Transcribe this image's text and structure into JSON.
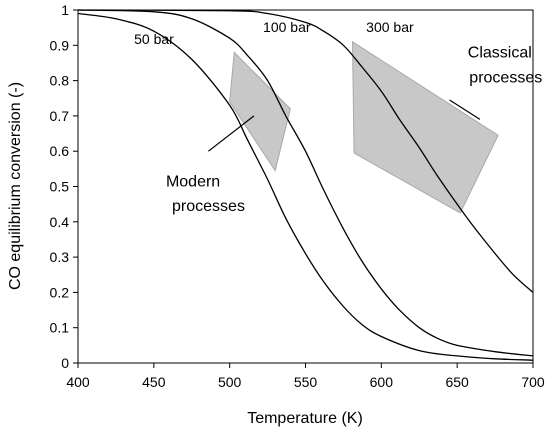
{
  "chart_data": {
    "type": "line",
    "title": "",
    "xlabel": "Temperature (K)",
    "ylabel": "CO equilibrium conversion (-)",
    "xlim": [
      400,
      700
    ],
    "ylim": [
      0,
      1
    ],
    "xticks": [
      "400",
      "450",
      "500",
      "550",
      "600",
      "650",
      "700"
    ],
    "yticks": [
      "0",
      "0.1",
      "0.2",
      "0.3",
      "0.4",
      "0.5",
      "0.6",
      "0.7",
      "0.8",
      "0.9",
      "1"
    ],
    "grid": false,
    "legend": "none",
    "colors": {
      "line": "#000000",
      "region_fill": "#c8c8c8",
      "region_stroke": "#a8a8a8"
    },
    "series": [
      {
        "name": "50 bar",
        "x": [
          400,
          425,
          450,
          475,
          500,
          512,
          525,
          537,
          550,
          562,
          575,
          587,
          600,
          625,
          650,
          675,
          700
        ],
        "y": [
          0.99,
          0.975,
          0.94,
          0.86,
          0.73,
          0.63,
          0.52,
          0.41,
          0.31,
          0.23,
          0.16,
          0.11,
          0.075,
          0.035,
          0.02,
          0.012,
          0.008
        ]
      },
      {
        "name": "100 bar",
        "x": [
          400,
          450,
          475,
          500,
          512,
          525,
          537,
          550,
          562,
          575,
          587,
          600,
          612,
          625,
          637,
          650,
          675,
          700
        ],
        "y": [
          1.0,
          0.995,
          0.975,
          0.92,
          0.87,
          0.8,
          0.7,
          0.6,
          0.49,
          0.38,
          0.29,
          0.21,
          0.15,
          0.1,
          0.07,
          0.05,
          0.032,
          0.02
        ]
      },
      {
        "name": "300 bar",
        "x": [
          400,
          500,
          525,
          550,
          562,
          575,
          587,
          600,
          612,
          625,
          637,
          650,
          662,
          675,
          687,
          700
        ],
        "y": [
          1.0,
          0.998,
          0.99,
          0.965,
          0.94,
          0.9,
          0.84,
          0.77,
          0.69,
          0.61,
          0.53,
          0.45,
          0.38,
          0.31,
          0.25,
          0.2
        ]
      }
    ],
    "regions": [
      {
        "label": "Modern processes",
        "points": [
          [
            500,
            0.74
          ],
          [
            503,
            0.88
          ],
          [
            540,
            0.72
          ],
          [
            530,
            0.545
          ]
        ]
      },
      {
        "label": "Classical processes",
        "points": [
          [
            581,
            0.91
          ],
          [
            677,
            0.645
          ],
          [
            652,
            0.425
          ],
          [
            582,
            0.595
          ]
        ]
      }
    ],
    "annotations": [
      {
        "text": "50 bar",
        "x": 437,
        "y": 0.903
      },
      {
        "text": "100 bar",
        "x": 522,
        "y": 0.937
      },
      {
        "text": "300 bar",
        "x": 590,
        "y": 0.937
      },
      {
        "text": "Modern",
        "x": 458,
        "y": 0.5
      },
      {
        "text": "processes",
        "x": 462,
        "y": 0.43
      },
      {
        "text": "Classical",
        "x": 657,
        "y": 0.865
      },
      {
        "text": "processes",
        "x": 658,
        "y": 0.795
      }
    ],
    "leaders": [
      {
        "from": [
          486,
          0.6
        ],
        "to": [
          516,
          0.7
        ]
      },
      {
        "from": [
          645,
          0.745
        ],
        "to": [
          665,
          0.69
        ]
      }
    ]
  }
}
